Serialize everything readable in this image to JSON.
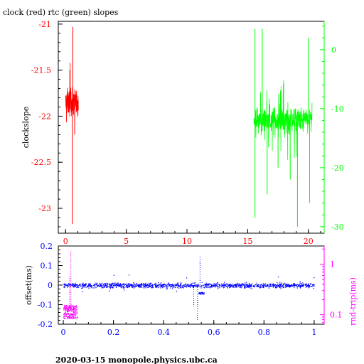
{
  "title": "clock (red) rtc (green) slopes",
  "footer": "2020-03-15  monopole.physics.ubc.ca",
  "colors": {
    "red": "#ff0000",
    "green": "#00ff00",
    "blue": "#0000ff",
    "magenta": "#ff00ff",
    "axis": "#000000"
  },
  "chart_data": [
    {
      "type": "line",
      "title": "clock (red) rtc (green) slopes",
      "xlabel": "",
      "ylabel": "clockslope",
      "xlim": [
        -0.6,
        21.3
      ],
      "xticks": [
        0,
        5,
        10,
        15,
        20
      ],
      "ylim": [
        -23.27,
        -20.97
      ],
      "yticks": [
        -21,
        -21.5,
        -22,
        -22.5,
        -23
      ],
      "ytick_labels": [
        "-21",
        "-21.5",
        "-22",
        "-22.5",
        "-23"
      ],
      "y2lim": [
        -31.1,
        4.8
      ],
      "y2ticks": [
        0,
        -10,
        -20,
        -30
      ],
      "y2tick_labels": [
        "0",
        "-10",
        "-20",
        "-30"
      ],
      "grid": false,
      "series": [
        {
          "name": "clock",
          "color": "#ff0000",
          "axis": "left",
          "x_range": [
            0.0,
            1.05
          ],
          "center": -21.85,
          "band": [
            -21.6,
            -22.1
          ],
          "spikes": [
            [
              0.6,
              -21.03
            ],
            [
              0.55,
              -23.17
            ],
            [
              0.35,
              -21.5
            ],
            [
              0.75,
              -22.2
            ]
          ]
        },
        {
          "name": "rtc",
          "color": "#00ff00",
          "axis": "right",
          "x_range": [
            15.5,
            20.3
          ],
          "center": -12.0,
          "band": [
            -8.0,
            -16.0
          ],
          "spikes": [
            [
              15.6,
              3.5
            ],
            [
              15.6,
              -28.5
            ],
            [
              16.2,
              3.5
            ],
            [
              16.6,
              -24.5
            ],
            [
              19.1,
              -30.0
            ],
            [
              20.0,
              2.0
            ],
            [
              18.5,
              -22.0
            ],
            [
              17.5,
              -20.0
            ],
            [
              20.1,
              -26.0
            ]
          ]
        }
      ]
    },
    {
      "type": "scatter",
      "xlabel": "",
      "ylabel": "offset(ms)",
      "y2label": "rnd-trip(ms)",
      "xlim": [
        -0.02,
        1.04
      ],
      "xticks": [
        0,
        0.2,
        0.4,
        0.6,
        0.8,
        1
      ],
      "xtick_labels": [
        "0",
        "0.2",
        "0.4",
        "0.6",
        "0.8",
        "1"
      ],
      "ylim": [
        -0.2,
        0.2
      ],
      "yticks": [
        0.2,
        0.1,
        0,
        -0.1,
        -0.2
      ],
      "ytick_labels": [
        "0.2",
        "0.1",
        "0",
        "-0.1",
        "-0.2"
      ],
      "y2scale": "log",
      "y2ticks": [
        1,
        0.1
      ],
      "y2tick_labels": [
        "1",
        "0.1"
      ],
      "grid": false,
      "series": [
        {
          "name": "offset",
          "color": "#0000ff",
          "axis": "left",
          "x_range": [
            0.0,
            1.0
          ],
          "center": 0.0,
          "spread": 0.012,
          "dip": {
            "x_range": [
              0.535,
              0.56
            ],
            "y": -0.04
          },
          "spikes": [
            [
              0.535,
              -0.18
            ],
            [
              0.545,
              0.15
            ],
            [
              0.52,
              -0.11
            ]
          ]
        },
        {
          "name": "rnd-trip",
          "color": "#ff00ff",
          "axis": "right",
          "x_range": [
            0.0,
            0.055
          ],
          "center": 0.12,
          "spread": [
            0.085,
            0.16
          ],
          "spikes": [
            [
              0.03,
              1.9
            ],
            [
              0.025,
              0.6
            ]
          ]
        }
      ]
    }
  ]
}
